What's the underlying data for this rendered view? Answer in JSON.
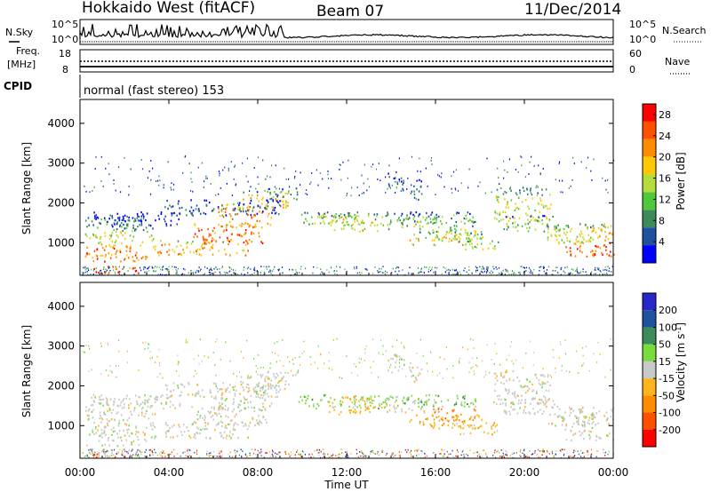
{
  "header": {
    "title": "Hokkaido West (fitACF)",
    "beam": "Beam 07",
    "date": "11/Dec/2014"
  },
  "aux": {
    "nsky_label": "N.Sky",
    "nsearch_label": "N.Search",
    "noise_ticks": [
      "10^5",
      "10^0"
    ],
    "freq_label_1": "Freq.",
    "freq_label_2": "[MHz]",
    "freq_ticks": [
      "18",
      "8"
    ],
    "nave_label": "Nave",
    "nave_ticks": [
      "60",
      "0"
    ],
    "cpid_label": "CPID",
    "cpid_value": "normal (fast stereo) 153"
  },
  "colors": {
    "power": [
      "#0000ff",
      "#2050a0",
      "#3c8c5a",
      "#50c83c",
      "#b4dc3c",
      "#ffc800",
      "#ff8c00",
      "#ff5000",
      "#ff0000"
    ],
    "velocity": [
      "#ff0000",
      "#ff5000",
      "#ff8c00",
      "#ffb41e",
      "#c8c8c8",
      "#78dc3c",
      "#3c8c5a",
      "#2050a0",
      "#2828c8"
    ]
  },
  "chart_data": [
    {
      "type": "heatmap",
      "name": "power",
      "ylabel": "Slant Range [km]",
      "xlabel": "Time UT",
      "x_ticks": [
        "00:00",
        "04:00",
        "08:00",
        "12:00",
        "16:00",
        "20:00",
        "00:00"
      ],
      "x_range_hours": [
        0,
        24
      ],
      "y_ticks": [
        1000,
        2000,
        3000,
        4000
      ],
      "ylim": [
        180,
        4600
      ],
      "colorbar_label": "Power [dB]",
      "colorbar_ticks": [
        4,
        8,
        12,
        16,
        20,
        24,
        28
      ],
      "colorbar_range": [
        0,
        30
      ]
    },
    {
      "type": "heatmap",
      "name": "velocity",
      "ylabel": "Slant Range [km]",
      "xlabel": "Time UT",
      "x_ticks": [
        "00:00",
        "04:00",
        "08:00",
        "12:00",
        "16:00",
        "20:00",
        "00:00"
      ],
      "x_range_hours": [
        0,
        24
      ],
      "y_ticks": [
        1000,
        2000,
        3000,
        4000
      ],
      "ylim": [
        180,
        4600
      ],
      "colorbar_label": "Velocity [m s^-1]",
      "colorbar_ticks": [
        200,
        100,
        50,
        15,
        -15,
        -50,
        -100,
        -200
      ]
    }
  ]
}
